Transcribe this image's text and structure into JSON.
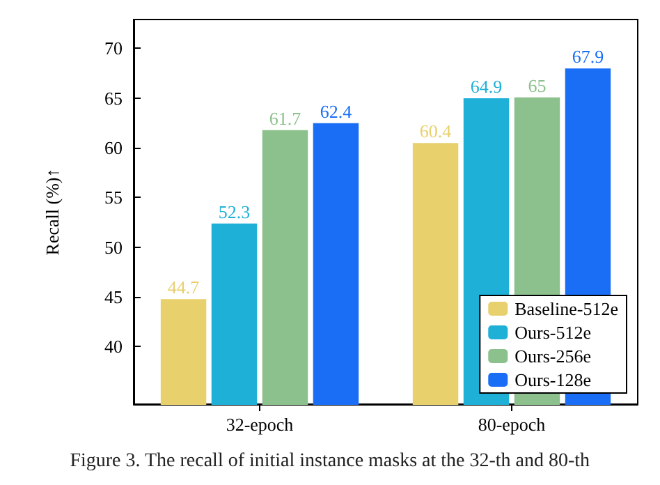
{
  "chart_data": {
    "type": "bar",
    "ylabel": "Recall (%)↑",
    "categories": [
      "32-epoch",
      "80-epoch"
    ],
    "series": [
      {
        "name": "Baseline-512e",
        "color": "#e8d06c",
        "values": [
          44.7,
          60.4
        ]
      },
      {
        "name": "Ours-512e",
        "color": "#1fb0d8",
        "values": [
          52.3,
          64.9
        ]
      },
      {
        "name": "Ours-256e",
        "color": "#8cc08c",
        "values": [
          61.7,
          65
        ]
      },
      {
        "name": "Ours-128e",
        "color": "#1a6ef5",
        "values": [
          62.4,
          67.9
        ]
      }
    ],
    "ylim": [
      34.2,
      72.9
    ],
    "yticks": [
      40,
      45,
      50,
      55,
      60,
      65,
      70
    ],
    "grid": false,
    "legend": "bottom right",
    "data_labels": true,
    "annotations": [
      "Figure 3. The recall of initial instance masks at the 32-th and 80-th"
    ]
  }
}
